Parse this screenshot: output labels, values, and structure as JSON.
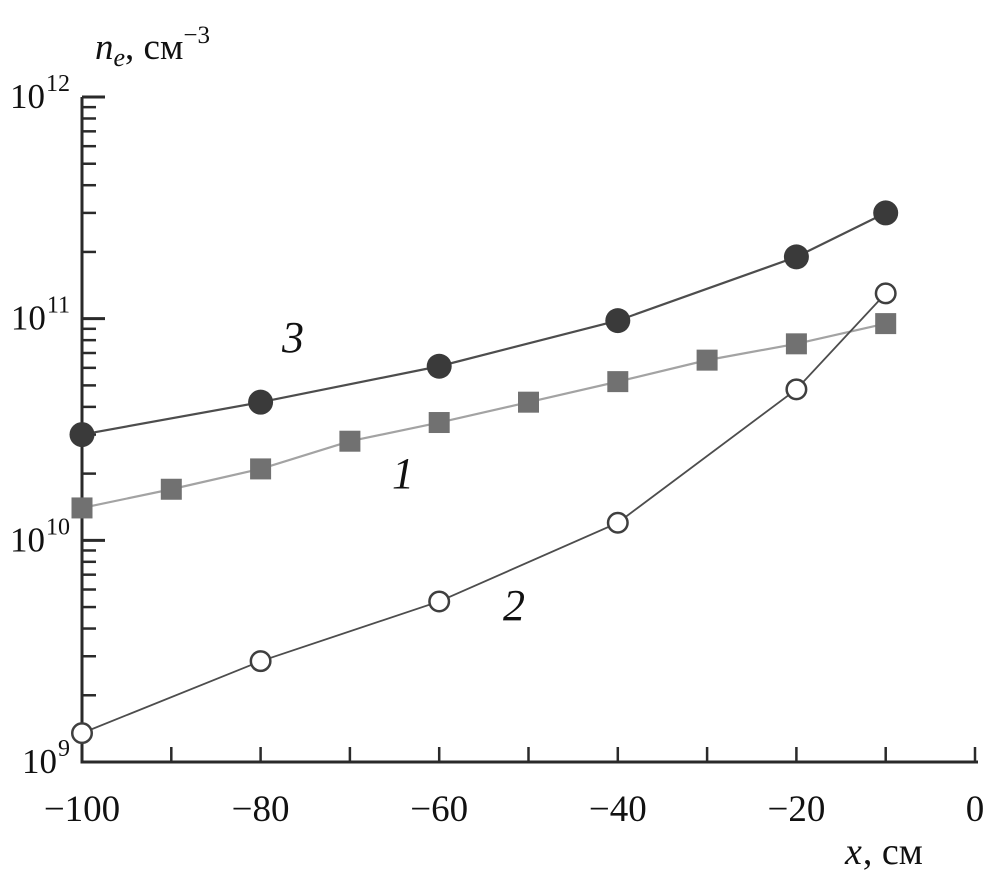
{
  "figure": {
    "background": "#ffffff",
    "text_color": "#111111",
    "axis_color": "#2a2a2a"
  },
  "chart_data": {
    "type": "line",
    "title": "",
    "ylabel": "n_e, см^-3",
    "xlabel": "x, см",
    "ylabel_parts": {
      "variable": "n",
      "subscript": "e",
      "rest": ", см",
      "superscript": "−3"
    },
    "xlabel_parts": {
      "variable": "x",
      "rest": ", см"
    },
    "x_axis": {
      "min": -100,
      "max": 0,
      "minor_tick_step": 10,
      "major_ticks": [
        -100,
        -80,
        -60,
        -40,
        -20,
        0
      ],
      "major_tick_labels": [
        "−100",
        "−80",
        "−60",
        "−40",
        "−20",
        "0"
      ]
    },
    "y_axis": {
      "scale": "log",
      "min": 1000000000.0,
      "max": 1000000000000.0,
      "decade_labels": [
        {
          "base": "10",
          "exp": "12",
          "value": 1000000000000.0
        },
        {
          "base": "10",
          "exp": "11",
          "value": 100000000000.0
        },
        {
          "base": "10",
          "exp": "10",
          "value": 10000000000.0
        },
        {
          "base": "10",
          "exp": "9",
          "value": 1000000000.0
        }
      ],
      "minor_mantissas": [
        2,
        3,
        4,
        5,
        6,
        7,
        8,
        9
      ]
    },
    "grid": false,
    "legend": "inline-curve-numbers",
    "series": [
      {
        "name": "1",
        "marker": "square-filled",
        "marker_color": "#717171",
        "marker_size": 21,
        "line_color": "#a3a3a3",
        "line_width": 2.2,
        "points": [
          [
            -100,
            14000000000.0
          ],
          [
            -90,
            17000000000.0
          ],
          [
            -80,
            21000000000.0
          ],
          [
            -70,
            28000000000.0
          ],
          [
            -60,
            34000000000.0
          ],
          [
            -50,
            42000000000.0
          ],
          [
            -40,
            52000000000.0
          ],
          [
            -30,
            65000000000.0
          ],
          [
            -20,
            77000000000.0
          ],
          [
            -10,
            95000000000.0
          ]
        ]
      },
      {
        "name": "2",
        "marker": "circle-open",
        "marker_color": "#3f3f3f",
        "marker_size": 22,
        "line_color": "#4d4d4d",
        "line_width": 1.8,
        "points": [
          [
            -100,
            1350000000.0
          ],
          [
            -80,
            2850000000.0
          ],
          [
            -60,
            5300000000.0
          ],
          [
            -40,
            12000000000.0
          ],
          [
            -20,
            48000000000.0
          ],
          [
            -10,
            130000000000.0
          ]
        ]
      },
      {
        "name": "3",
        "marker": "circle-filled",
        "marker_color": "#3a3a3a",
        "marker_size": 25,
        "line_color": "#4d4d4d",
        "line_width": 2.2,
        "points": [
          [
            -100,
            30000000000.0
          ],
          [
            -80,
            42000000000.0
          ],
          [
            -60,
            61000000000.0
          ],
          [
            -40,
            98000000000.0
          ],
          [
            -20,
            190000000000.0
          ],
          [
            -10,
            300000000000.0
          ]
        ]
      }
    ]
  }
}
